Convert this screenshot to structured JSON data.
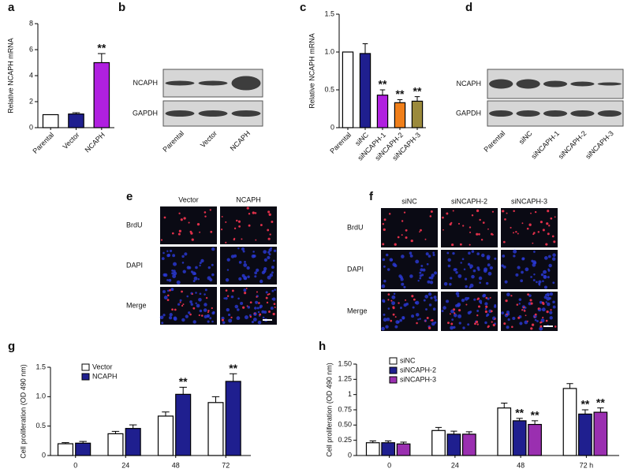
{
  "chart_data": [
    {
      "type": "bar",
      "panel": "a",
      "ylabel": "Relative NCAPH mRNA",
      "categories": [
        "Parental",
        "Vector",
        "NCAPH"
      ],
      "values": [
        1,
        1.05,
        5.0
      ],
      "errors": [
        0,
        0.1,
        0.7
      ],
      "colors": [
        "#ffffff",
        "#1f1f8f",
        "#b020e0"
      ],
      "significance": [
        null,
        null,
        "**"
      ],
      "ylim": [
        0,
        8
      ],
      "yticks": [
        0,
        2,
        4,
        6,
        8
      ]
    },
    {
      "type": "bar",
      "panel": "c",
      "ylabel": "Relative NCAPH mRNA",
      "categories": [
        "Parental",
        "siNC",
        "siNCAPH-1",
        "siNCAPH-2",
        "siNCAPH-3"
      ],
      "values": [
        1,
        0.98,
        0.43,
        0.33,
        0.35
      ],
      "errors": [
        0,
        0.13,
        0.07,
        0.04,
        0.06
      ],
      "colors": [
        "#ffffff",
        "#1f1f8f",
        "#b020e0",
        "#f07f1a",
        "#9b8a3c"
      ],
      "significance": [
        null,
        null,
        "**",
        "**",
        "**"
      ],
      "ylim": [
        0,
        1.5
      ],
      "yticks": [
        0,
        0.5,
        {
          "value": 1,
          "label": "1.0"
        },
        1.5
      ]
    },
    {
      "type": "grouped-bar",
      "panel": "g",
      "ylabel": "Cell proliferation (OD 490 nm)",
      "categories": [
        "0",
        "24",
        "48",
        "72"
      ],
      "series": [
        {
          "name": "Vector",
          "color": "#ffffff",
          "values": [
            0.2,
            0.37,
            0.67,
            0.9
          ],
          "errors": [
            0.02,
            0.04,
            0.07,
            0.1
          ],
          "significance": [
            null,
            null,
            null,
            null
          ]
        },
        {
          "name": "NCAPH",
          "color": "#1f1f8f",
          "values": [
            0.21,
            0.46,
            1.04,
            1.26
          ],
          "errors": [
            0.03,
            0.06,
            0.12,
            0.13
          ],
          "significance": [
            null,
            null,
            "**",
            "**"
          ]
        }
      ],
      "ylim": [
        0,
        1.5
      ],
      "yticks": [
        0,
        0.5,
        {
          "value": 1,
          "label": "1.0"
        },
        1.5
      ],
      "legend": "top-left"
    },
    {
      "type": "grouped-bar",
      "panel": "h",
      "ylabel": "Cell proliferation (OD 490 nm)",
      "categories": [
        "0",
        "24",
        "48",
        "72 h"
      ],
      "series": [
        {
          "name": "siNC",
          "color": "#ffffff",
          "values": [
            0.21,
            0.41,
            0.78,
            1.1
          ],
          "errors": [
            0.03,
            0.05,
            0.08,
            0.08
          ],
          "significance": [
            null,
            null,
            null,
            null
          ]
        },
        {
          "name": "siNCAPH-2",
          "color": "#1f1f8f",
          "values": [
            0.21,
            0.35,
            0.57,
            0.68
          ],
          "errors": [
            0.03,
            0.05,
            0.04,
            0.07
          ],
          "significance": [
            null,
            null,
            "**",
            "**"
          ]
        },
        {
          "name": "siNCAPH-3",
          "color": "#9a2fb0",
          "values": [
            0.19,
            0.35,
            0.51,
            0.71
          ],
          "errors": [
            0.03,
            0.04,
            0.06,
            0.07
          ],
          "significance": [
            null,
            null,
            "**",
            "**"
          ]
        }
      ],
      "ylim": [
        0,
        1.5
      ],
      "yticks": [
        0,
        0.25,
        {
          "value": 0.5,
          "label": "0.50"
        },
        0.75,
        1.0,
        1.25,
        {
          "value": 1.5,
          "label": "1.50"
        }
      ],
      "legend": "top-left"
    }
  ],
  "blots": [
    {
      "panel": "b",
      "rows": [
        "NCAPH",
        "GAPDH"
      ],
      "lanes": [
        "Parental",
        "Vector",
        "NCAPH"
      ]
    },
    {
      "panel": "d",
      "rows": [
        "NCAPH",
        "GAPDH"
      ],
      "lanes": [
        "Parental",
        "siNC",
        "siNCAPH-1",
        "siNCAPH-2",
        "siNCAPH-3"
      ]
    }
  ],
  "images": [
    {
      "panel": "e",
      "columns": [
        "Vector",
        "NCAPH"
      ],
      "rows": [
        "BrdU",
        "DAPI",
        "Merge"
      ]
    },
    {
      "panel": "f",
      "columns": [
        "siNC",
        "siNCAPH-2",
        "siNCAPH-3"
      ],
      "rows": [
        "BrdU",
        "DAPI",
        "Merge"
      ]
    }
  ]
}
